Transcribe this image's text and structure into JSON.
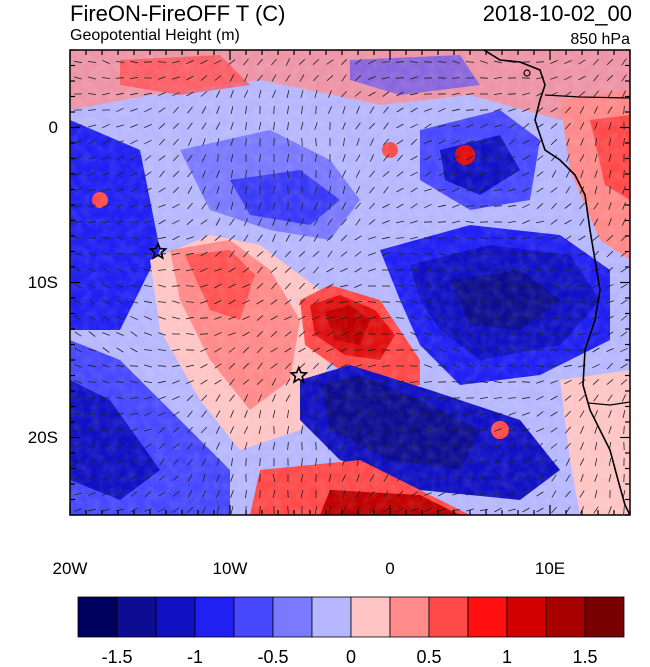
{
  "title_left": "FireON-FireOFF T (C)",
  "title_right": "2018-10-02_00",
  "subtitle_left": "Geopotential Height (m)",
  "subtitle_right": "850 hPa",
  "map": {
    "lon_range": [
      -20,
      15
    ],
    "lat_range": [
      -25,
      5
    ],
    "x_ticks": [
      {
        "value": -20,
        "label": "20W"
      },
      {
        "value": -10,
        "label": "10W"
      },
      {
        "value": 0,
        "label": "0"
      },
      {
        "value": 10,
        "label": "10E"
      }
    ],
    "y_ticks": [
      {
        "value": 0,
        "label": "0"
      },
      {
        "value": -10,
        "label": "10S"
      },
      {
        "value": -20,
        "label": "20S"
      }
    ],
    "markers": [
      {
        "name": "star-marker-west",
        "lon": -14.5,
        "lat": -8
      },
      {
        "name": "star-marker-center",
        "lon": -5.7,
        "lat": -16
      }
    ],
    "field_description_regions": {
      "positive_anomaly": [
        "central-west ocean around 12W-1W, 8S-16S",
        "southern coast 20S-25S"
      ],
      "negative_anomaly": [
        "east of 0 around 2E-13E, 5S-15S",
        "south-central 0-8E, 16S-22S"
      ]
    }
  },
  "colorbar": {
    "colors": [
      "#00005e",
      "#0d0d91",
      "#1111c3",
      "#2020f2",
      "#4848ff",
      "#7a7aff",
      "#b7b7ff",
      "#ffc5c5",
      "#ff8a8a",
      "#ff4a4a",
      "#ff0f0f",
      "#d20000",
      "#a80000",
      "#780000"
    ],
    "labels": [
      "-1.5",
      "-1",
      "-0.5",
      "0",
      "0.5",
      "1",
      "1.5"
    ],
    "label_values": [
      -1.5,
      -1,
      -0.5,
      0,
      0.5,
      1,
      1.5
    ],
    "min": -1.75,
    "max": 1.75
  }
}
